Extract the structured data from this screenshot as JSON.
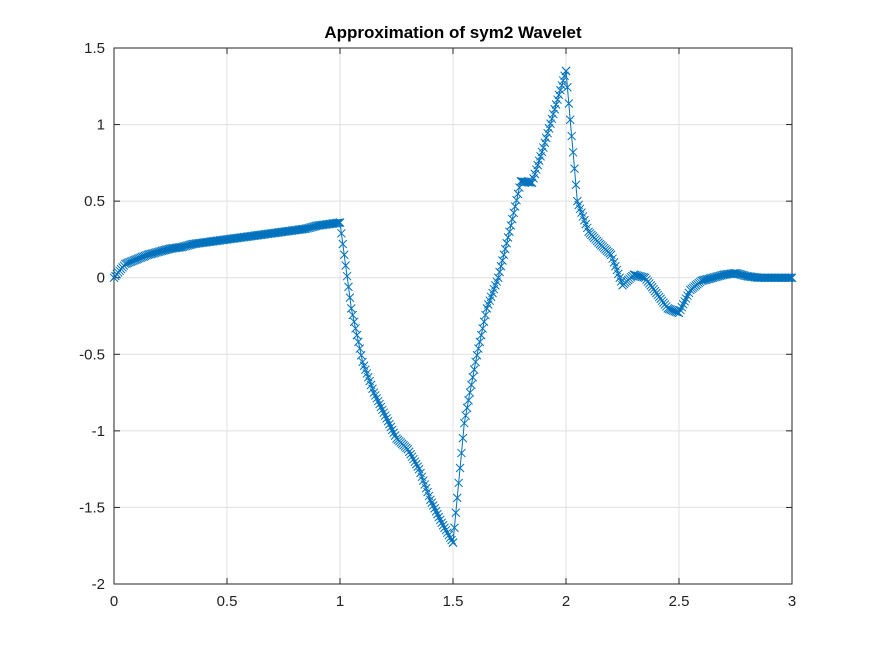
{
  "chart_data": {
    "type": "line",
    "title": "Approximation of sym2 Wavelet",
    "xlabel": "",
    "ylabel": "",
    "xlim": [
      0,
      3
    ],
    "ylim": [
      -2,
      1.5
    ],
    "xticks": [
      0,
      0.5,
      1,
      1.5,
      2,
      2.5,
      3
    ],
    "xtick_labels": [
      "0",
      "0.5",
      "1",
      "1.5",
      "2",
      "2.5",
      "3"
    ],
    "yticks": [
      -2,
      -1.5,
      -1,
      -0.5,
      0,
      0.5,
      1,
      1.5
    ],
    "ytick_labels": [
      "-2",
      "-1.5",
      "-1",
      "-0.5",
      "0",
      "0.5",
      "1",
      "1.5"
    ],
    "grid": true,
    "marker": "x",
    "color": "#0072BD",
    "series": [
      {
        "x": [
          0,
          0.05,
          0.1,
          0.15,
          0.2,
          0.25,
          0.3,
          0.35,
          0.4,
          0.45,
          0.5,
          0.55,
          0.6,
          0.65,
          0.7,
          0.75,
          0.8,
          0.85,
          0.9,
          0.95,
          1.0,
          1.0,
          1.05,
          1.1,
          1.15,
          1.2,
          1.25,
          1.3,
          1.35,
          1.4,
          1.45,
          1.5,
          1.5,
          1.55,
          1.6,
          1.65,
          1.7,
          1.75,
          1.8,
          1.85,
          1.9,
          1.95,
          2.0,
          2.0,
          2.05,
          2.1,
          2.15,
          2.2,
          2.25,
          2.3,
          2.35,
          2.4,
          2.45,
          2.5,
          2.55,
          2.6,
          2.65,
          2.7,
          2.75,
          2.8,
          2.85,
          2.9,
          2.95,
          3.0
        ],
        "y": [
          0.0,
          0.09,
          0.12,
          0.15,
          0.17,
          0.19,
          0.2,
          0.22,
          0.23,
          0.24,
          0.25,
          0.26,
          0.27,
          0.28,
          0.29,
          0.3,
          0.31,
          0.32,
          0.34,
          0.35,
          0.36,
          0.36,
          -0.2,
          -0.55,
          -0.75,
          -0.9,
          -1.05,
          -1.12,
          -1.25,
          -1.45,
          -1.6,
          -1.73,
          -1.73,
          -0.95,
          -0.55,
          -0.2,
          0.0,
          0.3,
          0.63,
          0.62,
          0.85,
          1.1,
          1.35,
          1.35,
          0.5,
          0.3,
          0.22,
          0.15,
          -0.05,
          0.02,
          0.0,
          -0.1,
          -0.2,
          -0.23,
          -0.08,
          -0.02,
          0.0,
          0.02,
          0.03,
          0.01,
          0.0,
          0.0,
          0.0,
          0.0
        ]
      }
    ]
  }
}
